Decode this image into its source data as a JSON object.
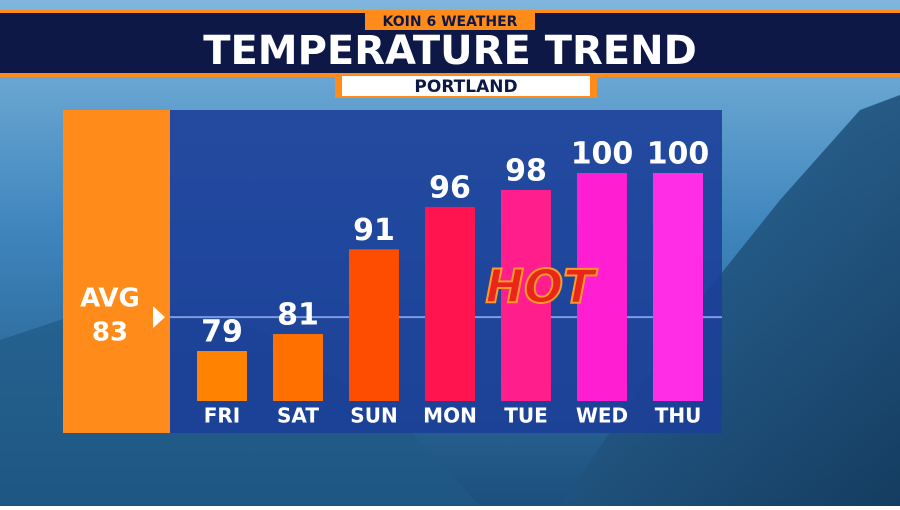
{
  "chart_data": {
    "type": "bar",
    "network": "KOIN 6 WEATHER",
    "title": "TEMPERATURE TREND",
    "subtitle": "PORTLAND",
    "categories": [
      "FRI",
      "SAT",
      "SUN",
      "MON",
      "TUE",
      "WED",
      "THU"
    ],
    "values": [
      79,
      81,
      91,
      96,
      98,
      100,
      100
    ],
    "colors": [
      "#ff8200",
      "#ff7000",
      "#ff4d00",
      "#ff1450",
      "#ff1e8c",
      "#ff1ed2",
      "#ff2ee6"
    ],
    "average": {
      "label": "AVG",
      "value": 83,
      "color": "#ff8c1a"
    },
    "annotation": "HOT"
  }
}
